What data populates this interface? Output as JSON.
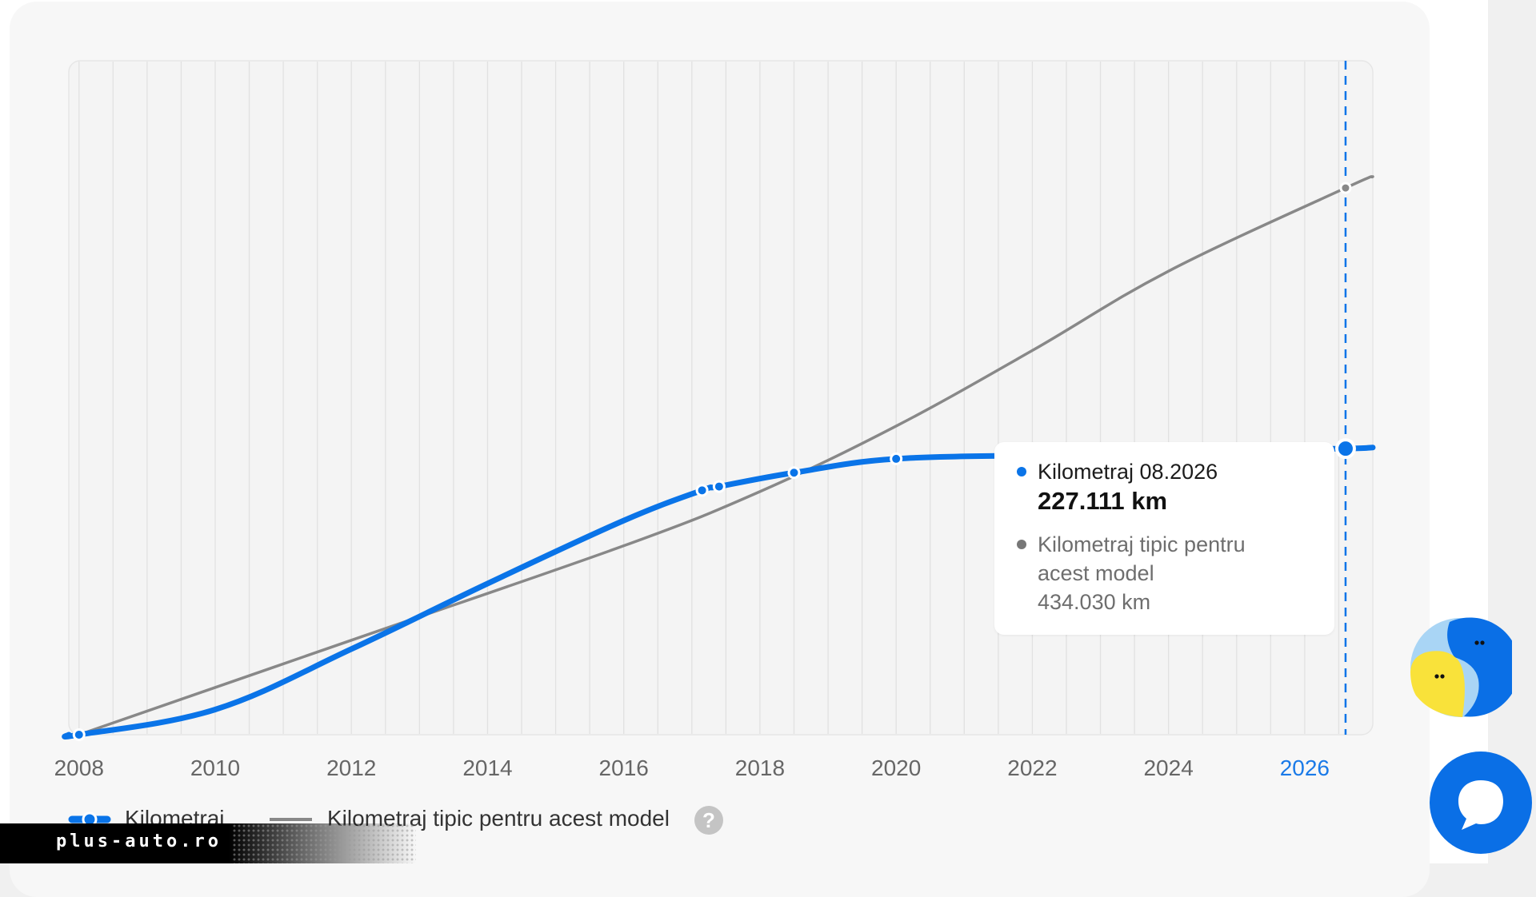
{
  "chart_data": {
    "type": "line",
    "xlim": [
      2007.85,
      2027.0
    ],
    "ylim": [
      0,
      535000
    ],
    "x_ticks": [
      "2008",
      "2010",
      "2012",
      "2014",
      "2016",
      "2018",
      "2020",
      "2022",
      "2024",
      "2026"
    ],
    "highlight_tick": "2026",
    "grid": "vertical lines every 6 months",
    "series": [
      {
        "name": "Kilometraj",
        "color": "#0a74e8",
        "markers": [
          {
            "x": 2008.0,
            "y": 0
          },
          {
            "x": 2017.15,
            "y": 194000
          },
          {
            "x": 2017.4,
            "y": 197000
          },
          {
            "x": 2018.5,
            "y": 208000
          },
          {
            "x": 2020.0,
            "y": 219000
          },
          {
            "x": 2022.4,
            "y": 222000
          },
          {
            "x": 2023.9,
            "y": 224000
          },
          {
            "x": 2024.9,
            "y": 226000
          },
          {
            "x": 2026.6,
            "y": 227111
          }
        ],
        "curve": [
          {
            "x": 2007.85,
            "y": 0
          },
          {
            "x": 2008.0,
            "y": 0
          },
          {
            "x": 2010.0,
            "y": 20000
          },
          {
            "x": 2012.0,
            "y": 68000
          },
          {
            "x": 2014.0,
            "y": 120000
          },
          {
            "x": 2016.0,
            "y": 170000
          },
          {
            "x": 2017.15,
            "y": 194000
          },
          {
            "x": 2017.4,
            "y": 197000
          },
          {
            "x": 2018.5,
            "y": 208000
          },
          {
            "x": 2020.0,
            "y": 219000
          },
          {
            "x": 2022.4,
            "y": 222000
          },
          {
            "x": 2023.9,
            "y": 224000
          },
          {
            "x": 2024.9,
            "y": 226000
          },
          {
            "x": 2026.6,
            "y": 227111
          },
          {
            "x": 2027.0,
            "y": 228000
          }
        ]
      },
      {
        "name": "Kilometraj tipic pentru acest model",
        "color": "#888888",
        "markers": [
          {
            "x": 2008.0,
            "y": 0
          },
          {
            "x": 2026.6,
            "y": 434030
          }
        ],
        "curve": [
          {
            "x": 2008.0,
            "y": 0
          },
          {
            "x": 2012.0,
            "y": 75000
          },
          {
            "x": 2016.0,
            "y": 150000
          },
          {
            "x": 2018.0,
            "y": 193000
          },
          {
            "x": 2020.0,
            "y": 245000
          },
          {
            "x": 2022.0,
            "y": 305000
          },
          {
            "x": 2024.0,
            "y": 368000
          },
          {
            "x": 2026.6,
            "y": 434030
          },
          {
            "x": 2027.0,
            "y": 443000
          }
        ]
      }
    ],
    "cursor_x": 2026.6
  },
  "tooltip": {
    "series1_label": "Kilometraj 08.2026",
    "series1_value": "227.111 km",
    "series2_label": "Kilometraj tipic pentru acest model",
    "series2_value": "434.030 km"
  },
  "legend": {
    "item1": "Kilometraj",
    "item2": "Kilometraj tipic pentru acest model",
    "help": "?"
  },
  "watermark": "plus-auto.ro",
  "colors": {
    "blue": "#0a74e8",
    "gray": "#888888",
    "tick": "#666666",
    "accent_tick": "#1a7ae8"
  }
}
